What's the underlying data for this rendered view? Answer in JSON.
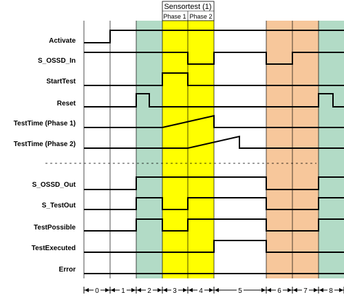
{
  "header": {
    "title": "Sensortest (1)",
    "phase1": "Phase 1",
    "phase2": "Phase 2"
  },
  "colors": {
    "green": "#b2dbc6",
    "yellow": "#ffff00",
    "orange": "#f7c79b",
    "line": "#000000"
  },
  "signals": [
    {
      "id": "activate",
      "label": "Activate"
    },
    {
      "id": "s-ossd-in",
      "label": "S_OSSD_In"
    },
    {
      "id": "starttest",
      "label": "StartTest"
    },
    {
      "id": "reset",
      "label": "Reset"
    },
    {
      "id": "testtime-phase1",
      "label": "TestTime (Phase 1)"
    },
    {
      "id": "testtime-phase2",
      "label": "TestTime (Phase 2)"
    },
    {
      "id": "s-ossd-out",
      "label": "S_OSSD_Out"
    },
    {
      "id": "s-testout",
      "label": "S_TestOut"
    },
    {
      "id": "testpossible",
      "label": "TestPossible"
    },
    {
      "id": "testexecuted",
      "label": "TestExecuted"
    },
    {
      "id": "error",
      "label": "Error"
    }
  ],
  "periods": [
    "0",
    "1",
    "2",
    "3",
    "4",
    "5",
    "6",
    "7",
    "8"
  ]
}
